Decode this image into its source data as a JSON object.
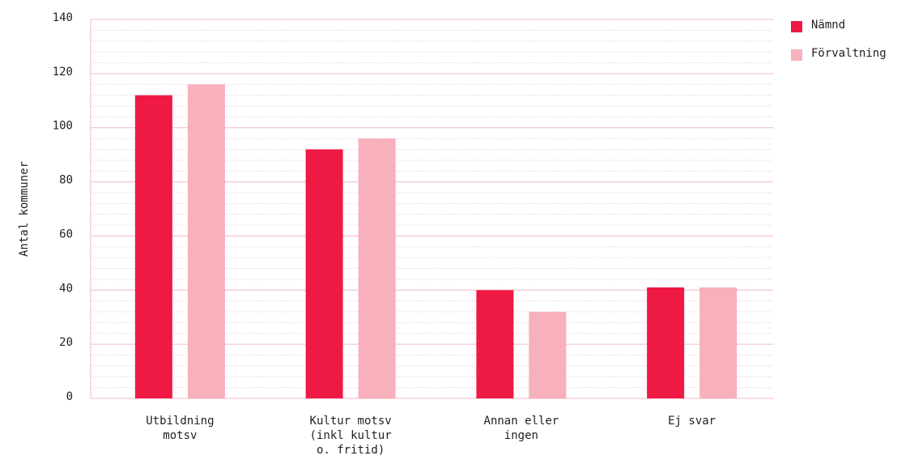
{
  "chart_data": {
    "type": "bar",
    "y_label": "Antal kommuner",
    "categories": [
      [
        "Utbildning",
        "motsv"
      ],
      [
        "Kultur motsv",
        "(inkl kultur",
        "o. fritid)"
      ],
      [
        "Annan eller",
        "ingen"
      ],
      [
        "Ej svar"
      ]
    ],
    "series": [
      {
        "name": "Nämnd",
        "color": "#ee1a44",
        "values": [
          112,
          92,
          40,
          41
        ]
      },
      {
        "name": "Förvaltning",
        "color": "#f7b0bc",
        "values": [
          116,
          96,
          32,
          41
        ]
      }
    ],
    "ylim": [
      0,
      140
    ],
    "yticks": [
      0,
      20,
      40,
      60,
      80,
      100,
      120,
      140
    ],
    "grid": true,
    "legend": "top-right"
  }
}
